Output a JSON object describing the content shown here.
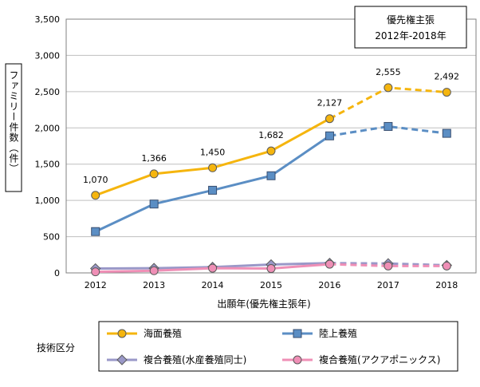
{
  "chart_data": {
    "type": "line",
    "categories": [
      "2012",
      "2013",
      "2014",
      "2015",
      "2016",
      "2017",
      "2018"
    ],
    "ylim": [
      0,
      3500
    ],
    "yticks": [
      0,
      500,
      1000,
      1500,
      2000,
      2500,
      3000,
      3500
    ],
    "ytick_labels": [
      "0",
      "500",
      "1,000",
      "1,500",
      "2,000",
      "2,500",
      "3,000",
      "3,500"
    ],
    "ylabel": "ファミリー件数（件）",
    "xlabel": "出願年(優先権主張年)",
    "grid": "horizontal",
    "annotation_box": [
      "優先権主張",
      "2012年-2018年"
    ],
    "dashed_from": "2016",
    "legend_title": "技術区分",
    "legend_position": "bottom",
    "series": [
      {
        "name": "海面養殖",
        "values": [
          1070,
          1366,
          1450,
          1682,
          2127,
          2555,
          2492
        ],
        "labels": [
          "1,070",
          "1,366",
          "1,450",
          "1,682",
          "2,127",
          "2,555",
          "2,492"
        ],
        "color": "#f5b50e",
        "marker": "circle"
      },
      {
        "name": "陸上養殖",
        "values": [
          570,
          950,
          1140,
          1340,
          1890,
          2020,
          1925
        ],
        "color": "#5b8ec4",
        "marker": "square"
      },
      {
        "name": "複合養殖(水産養殖同士)",
        "values": [
          60,
          65,
          80,
          115,
          135,
          130,
          105
        ],
        "color": "#9a98c8",
        "marker": "diamond"
      },
      {
        "name": "複合養殖(アクアポニックス)",
        "values": [
          15,
          30,
          65,
          60,
          120,
          95,
          95
        ],
        "color": "#ef8fb6",
        "marker": "circle"
      }
    ]
  }
}
